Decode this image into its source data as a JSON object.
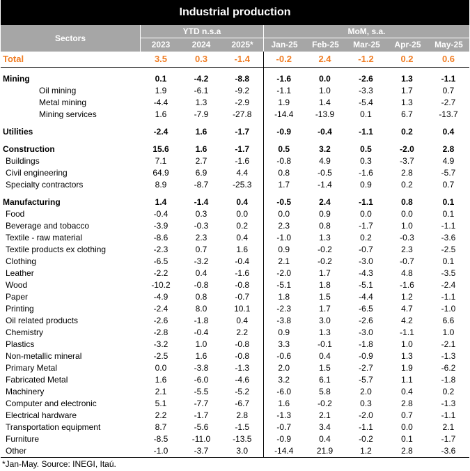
{
  "title": "Industrial production",
  "header": {
    "sectors": "Sectors",
    "group_ytd": "YTD n.s.a",
    "group_mom": "MoM, s.a.",
    "columns": [
      "2023",
      "2024",
      "2025*",
      "Jan-25",
      "Feb-25",
      "Mar-25",
      "Apr-25",
      "May-25"
    ]
  },
  "total": {
    "label": "Total",
    "values": [
      "3.5",
      "0.3",
      "-1.4",
      "-0.2",
      "2.4",
      "-1.2",
      "0.2",
      "0.6"
    ]
  },
  "mining": {
    "label": "Mining",
    "values": [
      "0.1",
      "-4.2",
      "-8.8",
      "-1.6",
      "0.0",
      "-2.6",
      "1.3",
      "-1.1"
    ],
    "rows": [
      {
        "label": "Oil mining",
        "values": [
          "1.9",
          "-6.1",
          "-9.2",
          "-1.1",
          "1.0",
          "-3.3",
          "1.7",
          "0.7"
        ]
      },
      {
        "label": "Metal mining",
        "values": [
          "-4.4",
          "1.3",
          "-2.9",
          "1.9",
          "1.4",
          "-5.4",
          "1.3",
          "-2.7"
        ]
      },
      {
        "label": "Mining services",
        "values": [
          "1.6",
          "-7.9",
          "-27.8",
          "-14.4",
          "-13.9",
          "0.1",
          "6.7",
          "-13.7"
        ]
      }
    ]
  },
  "utilities": {
    "label": "Utilities",
    "values": [
      "-2.4",
      "1.6",
      "-1.7",
      "-0.9",
      "-0.4",
      "-1.1",
      "0.2",
      "0.4"
    ]
  },
  "construction": {
    "label": "Construction",
    "values": [
      "15.6",
      "1.6",
      "-1.7",
      "0.5",
      "3.2",
      "0.5",
      "-2.0",
      "2.8"
    ],
    "rows": [
      {
        "label": "Buildings",
        "values": [
          "7.1",
          "2.7",
          "-1.6",
          "-0.8",
          "4.9",
          "0.3",
          "-3.7",
          "4.9"
        ]
      },
      {
        "label": "Civil engineering",
        "values": [
          "64.9",
          "6.9",
          "4.4",
          "0.8",
          "-0.5",
          "-1.6",
          "2.8",
          "-5.7"
        ]
      },
      {
        "label": "Specialty contractors",
        "values": [
          "8.9",
          "-8.7",
          "-25.3",
          "1.7",
          "-1.4",
          "0.9",
          "0.2",
          "0.7"
        ]
      }
    ]
  },
  "manufacturing": {
    "label": "Manufacturing",
    "values": [
      "1.4",
      "-1.4",
      "0.4",
      "-0.5",
      "2.4",
      "-1.1",
      "0.8",
      "0.1"
    ],
    "rows": [
      {
        "label": "Food",
        "values": [
          "-0.4",
          "0.3",
          "0.0",
          "0.0",
          "0.9",
          "0.0",
          "0.0",
          "0.1"
        ]
      },
      {
        "label": "Beverage and tobacco",
        "values": [
          "-3.9",
          "-0.3",
          "0.2",
          "2.3",
          "0.8",
          "-1.7",
          "1.0",
          "-1.1"
        ]
      },
      {
        "label": "Textile - raw material",
        "values": [
          "-8.6",
          "2.3",
          "0.4",
          "-1.0",
          "1.3",
          "0.2",
          "-0.3",
          "-3.6"
        ]
      },
      {
        "label": "Textile products ex clothing",
        "values": [
          "-2.3",
          "0.7",
          "1.6",
          "0.9",
          "-0.2",
          "-0.7",
          "2.3",
          "-2.5"
        ]
      },
      {
        "label": "Clothing",
        "values": [
          "-6.5",
          "-3.2",
          "-0.4",
          "2.1",
          "-0.2",
          "-3.0",
          "-0.7",
          "0.1"
        ]
      },
      {
        "label": "Leather",
        "values": [
          "-2.2",
          "0.4",
          "-1.6",
          "-2.0",
          "1.7",
          "-4.3",
          "4.8",
          "-3.5"
        ]
      },
      {
        "label": "Wood",
        "values": [
          "-10.2",
          "-0.8",
          "-0.8",
          "-5.1",
          "1.8",
          "-5.1",
          "-1.6",
          "-2.4"
        ]
      },
      {
        "label": "Paper",
        "values": [
          "-4.9",
          "0.8",
          "-0.7",
          "1.8",
          "1.5",
          "-4.4",
          "1.2",
          "-1.1"
        ]
      },
      {
        "label": "Printing",
        "values": [
          "-2.4",
          "8.0",
          "10.1",
          "-2.3",
          "1.7",
          "-6.5",
          "4.7",
          "-1.0"
        ]
      },
      {
        "label": "Oil related products",
        "values": [
          "-2.6",
          "-1.8",
          "0.4",
          "-3.8",
          "3.0",
          "-2.6",
          "4.2",
          "6.6"
        ]
      },
      {
        "label": "Chemistry",
        "values": [
          "-2.8",
          "-0.4",
          "2.2",
          "0.9",
          "1.3",
          "-3.0",
          "-1.1",
          "1.0"
        ]
      },
      {
        "label": "Plastics",
        "values": [
          "-3.2",
          "1.0",
          "-0.8",
          "3.3",
          "-0.1",
          "-1.8",
          "1.0",
          "-2.1"
        ]
      },
      {
        "label": "Non-metallic mineral",
        "values": [
          "-2.5",
          "1.6",
          "-0.8",
          "-0.6",
          "0.4",
          "-0.9",
          "1.3",
          "-1.3"
        ]
      },
      {
        "label": "Primary Metal",
        "values": [
          "0.0",
          "-3.8",
          "-1.3",
          "2.0",
          "1.5",
          "-2.7",
          "1.9",
          "-6.2"
        ]
      },
      {
        "label": "Fabricated Metal",
        "values": [
          "1.6",
          "-6.0",
          "-4.6",
          "3.2",
          "6.1",
          "-5.7",
          "1.1",
          "-1.8"
        ]
      },
      {
        "label": "Machinery",
        "values": [
          "2.1",
          "-5.5",
          "-5.2",
          "-6.0",
          "5.8",
          "2.0",
          "0.4",
          "0.2"
        ]
      },
      {
        "label": "Computer and electronic",
        "values": [
          "5.1",
          "-7.7",
          "-6.7",
          "1.6",
          "-0.2",
          "0.3",
          "2.8",
          "-1.3"
        ]
      },
      {
        "label": "Electrical hardware",
        "values": [
          "2.2",
          "-1.7",
          "2.8",
          "-1.3",
          "2.1",
          "-2.0",
          "0.7",
          "-1.1"
        ]
      },
      {
        "label": "Transportation equipment",
        "values": [
          "8.7",
          "-5.6",
          "-1.5",
          "-0.7",
          "3.4",
          "-1.1",
          "0.0",
          "2.1"
        ]
      },
      {
        "label": "Furniture",
        "values": [
          "-8.5",
          "-11.0",
          "-13.5",
          "-0.9",
          "0.4",
          "-0.2",
          "0.1",
          "-1.7"
        ]
      },
      {
        "label": "Other",
        "values": [
          "-1.0",
          "-3.7",
          "3.0",
          "-14.4",
          "21.9",
          "1.2",
          "2.8",
          "-3.6"
        ]
      }
    ]
  },
  "footnote": "*Jan-May. Source: INEGI, Itaú.",
  "colors": {
    "total": "#f07d24",
    "header_bg": "#a6a6a6",
    "title_bg": "#000000"
  }
}
